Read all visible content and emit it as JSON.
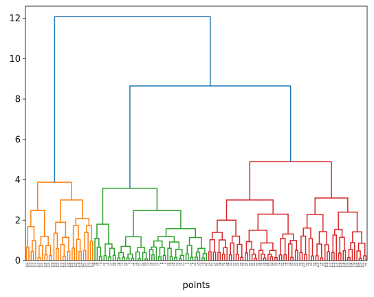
{
  "chart_data": {
    "type": "dendrogram",
    "title": "",
    "xlabel": "points",
    "ylabel": "",
    "ylim": [
      0,
      12.6
    ],
    "yticks": [
      0,
      2,
      4,
      6,
      8,
      10,
      12
    ],
    "n_leaves": 150,
    "grid": false,
    "legend": "none",
    "colors": {
      "orange": "#ff7f0e",
      "green": "#2ca02c",
      "red": "#d62728",
      "blue": "#1f77b4",
      "axis": "#000000"
    },
    "leaf_labels": [
      "142",
      "102",
      "123",
      "127",
      "115",
      "113",
      "103",
      "101",
      "125",
      "131",
      "137",
      "105",
      "122",
      "139",
      "109",
      "119",
      "111",
      "144",
      "136",
      "148",
      "120",
      "108",
      "143",
      "118",
      "124",
      "141",
      "107",
      "133",
      "117",
      "146",
      "38",
      "46",
      "13",
      "9",
      "42",
      "1",
      "25",
      "37",
      "34",
      "45",
      "12",
      "26",
      "10",
      "35",
      "30",
      "4",
      "7",
      "48",
      "11",
      "49",
      "27",
      "24",
      "44",
      "23",
      "22",
      "20",
      "31",
      "21",
      "17",
      "6",
      "5",
      "0",
      "40",
      "28",
      "18",
      "36",
      "32",
      "19",
      "39",
      "47",
      "3",
      "2",
      "29",
      "8",
      "43",
      "14",
      "33",
      "15",
      "16",
      "41",
      "71",
      "87",
      "73",
      "63",
      "61",
      "98",
      "91",
      "79",
      "66",
      "55",
      "94",
      "97",
      "62",
      "92",
      "99",
      "69",
      "90",
      "67",
      "80",
      "81",
      "84",
      "89",
      "95",
      "96",
      "56",
      "58",
      "88",
      "53",
      "64",
      "54",
      "77",
      "74",
      "65",
      "75",
      "76",
      "72",
      "86",
      "57",
      "93",
      "60",
      "50",
      "52",
      "132",
      "82",
      "70",
      "85",
      "59",
      "68",
      "100",
      "78",
      "83",
      "104",
      "106",
      "110",
      "112",
      "114",
      "116",
      "121",
      "126",
      "128",
      "129",
      "130",
      "134",
      "135",
      "138",
      "140",
      "145",
      "147",
      "149",
      "51"
    ],
    "clusters": [
      {
        "name": "orange-cluster",
        "color": "orange",
        "leaf_range": [
          0,
          30
        ],
        "merge_height": 3.88,
        "sub": [
          {
            "leaf_range": [
              0,
              12
            ],
            "merge_height": 2.48,
            "sub": [
              {
                "leaf_range": [
                  0,
                  5
                ],
                "merge_height": 1.68
              },
              {
                "leaf_range": [
                  5,
                  12
                ],
                "merge_height": 1.2
              }
            ]
          },
          {
            "leaf_range": [
              12,
              30
            ],
            "merge_height": 3.0,
            "sub": [
              {
                "leaf_range": [
                  12,
                  20
                ],
                "merge_height": 1.9
              },
              {
                "leaf_range": [
                  20,
                  30
                ],
                "merge_height": 2.08
              }
            ]
          }
        ]
      },
      {
        "name": "green-cluster",
        "color": "green",
        "leaf_range": [
          30,
          80
        ],
        "merge_height": 3.58,
        "sub": [
          {
            "leaf_range": [
              30,
              40
            ],
            "merge_height": 1.8,
            "sub": [
              {
                "leaf_range": [
                  30,
                  34
                ],
                "merge_height": 1.1
              },
              {
                "leaf_range": [
                  34,
                  40
                ],
                "merge_height": 0.82
              }
            ]
          },
          {
            "leaf_range": [
              40,
              80
            ],
            "merge_height": 2.48,
            "sub": [
              {
                "leaf_range": [
                  40,
                  54
                ],
                "merge_height": 1.18
              },
              {
                "leaf_range": [
                  54,
                  80
                ],
                "merge_height": 1.58
              }
            ]
          }
        ]
      },
      {
        "name": "red-cluster",
        "color": "red",
        "leaf_range": [
          80,
          150
        ],
        "merge_height": 4.9,
        "sub": [
          {
            "leaf_range": [
              80,
              120
            ],
            "merge_height": 3.0,
            "sub": [
              {
                "leaf_range": [
                  80,
                  96
                ],
                "merge_height": 2.0
              },
              {
                "leaf_range": [
                  96,
                  120
                ],
                "merge_height": 2.3
              }
            ]
          },
          {
            "leaf_range": [
              120,
              150
            ],
            "merge_height": 3.1,
            "sub": [
              {
                "leaf_range": [
                  120,
                  134
                ],
                "merge_height": 2.28
              },
              {
                "leaf_range": [
                  134,
                  150
                ],
                "merge_height": 2.4
              }
            ]
          }
        ]
      }
    ],
    "top_links": [
      {
        "name": "green-red-link",
        "join": [
          "green-cluster",
          "red-cluster"
        ],
        "height": 8.65,
        "color": "blue"
      },
      {
        "name": "root-link",
        "join": [
          "orange-cluster",
          "green-red-link"
        ],
        "height": 12.08,
        "color": "blue"
      }
    ]
  }
}
